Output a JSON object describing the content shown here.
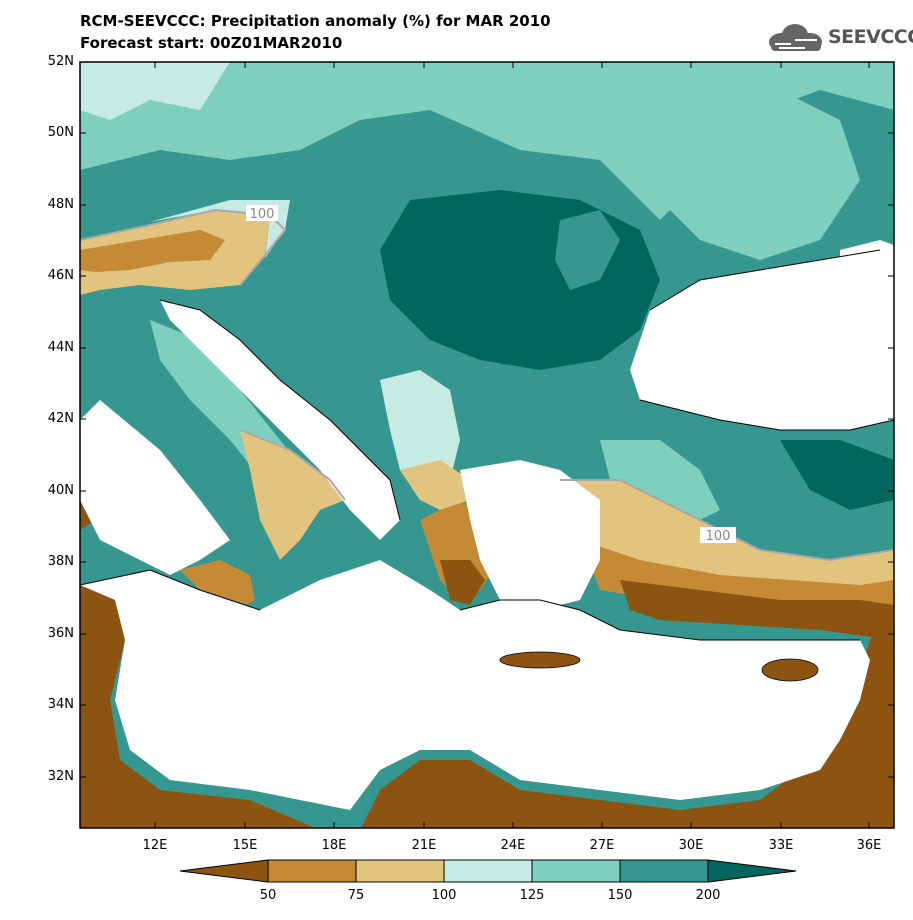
{
  "header": {
    "title": "RCM-SEEVCCC: Precipitation anomaly (%) for MAR 2010",
    "subtitle": "Forecast start: 00Z01MAR2010",
    "logo_text": "SEEVCCC"
  },
  "axes": {
    "lat_labels": [
      "52N",
      "50N",
      "48N",
      "46N",
      "44N",
      "42N",
      "40N",
      "38N",
      "36N",
      "34N",
      "32N"
    ],
    "lon_labels": [
      "12E",
      "15E",
      "18E",
      "21E",
      "24E",
      "27E",
      "30E",
      "33E",
      "36E"
    ]
  },
  "contour_labels": [
    "100",
    "100"
  ],
  "colorbar": {
    "labels": [
      "50",
      "75",
      "100",
      "125",
      "150",
      "200"
    ],
    "colors": [
      "#8c5410",
      "#c48a34",
      "#e2c47e",
      "#c5ebe3",
      "#7fcfbf",
      "#35978f",
      "#01665e"
    ]
  },
  "colors": {
    "sea": "#ffffff",
    "dry_strong": "#8c5410",
    "dry": "#c48a34",
    "dry_light": "#e2c47e",
    "wet_light": "#c5ebe3",
    "wet": "#7fcfbf",
    "wet_strong": "#35978f",
    "wet_max": "#01665e"
  }
}
